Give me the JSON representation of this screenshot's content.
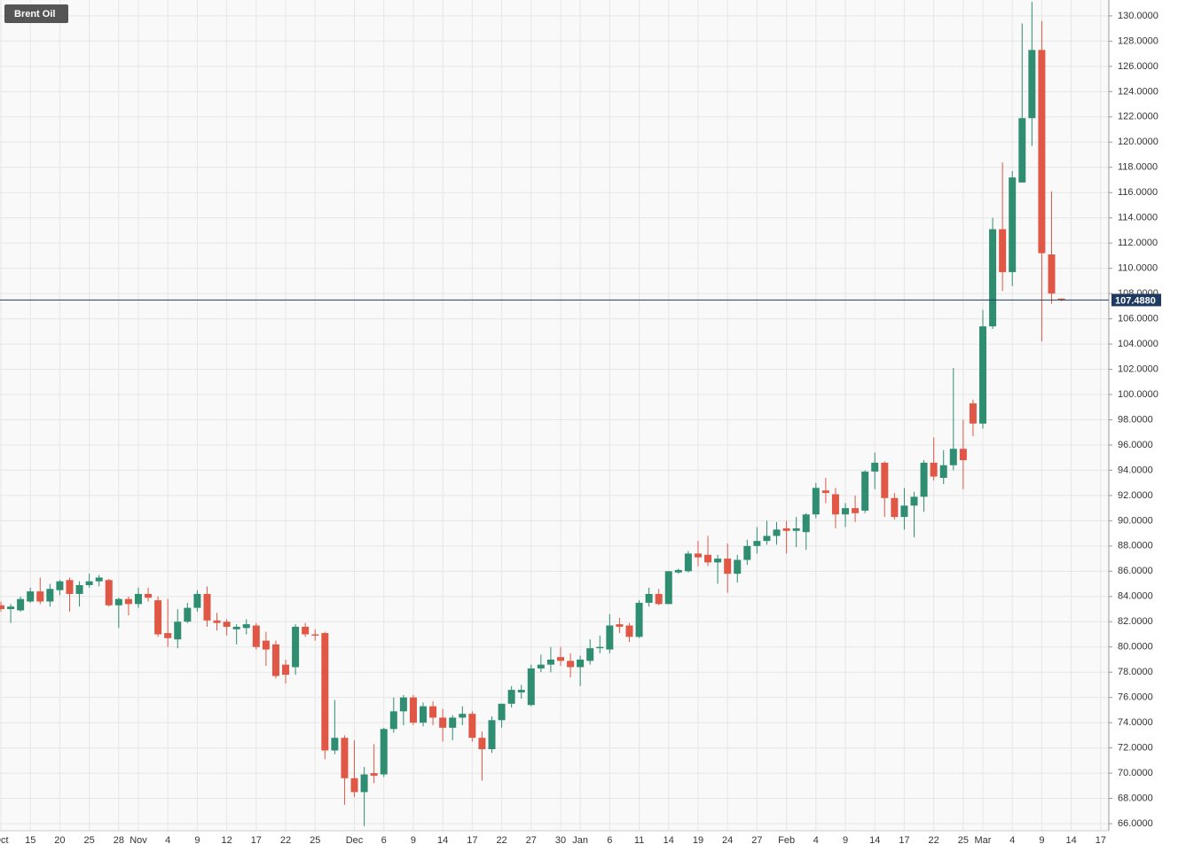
{
  "chart_data": {
    "type": "candlestick",
    "title": "Brent Oil",
    "categories": [
      "Oct",
      null,
      null,
      "15",
      null,
      null,
      "20",
      null,
      null,
      "25",
      null,
      null,
      "28",
      null,
      "Nov",
      null,
      null,
      "4",
      null,
      null,
      "9",
      null,
      null,
      "12",
      null,
      null,
      "17",
      null,
      null,
      "22",
      null,
      null,
      "25",
      null,
      null,
      null,
      "Dec",
      null,
      null,
      "6",
      null,
      null,
      "9",
      null,
      null,
      "14",
      null,
      null,
      "17",
      null,
      null,
      "22",
      null,
      null,
      "27",
      null,
      null,
      "30",
      null,
      "Jan",
      null,
      null,
      "6",
      null,
      null,
      "11",
      null,
      null,
      "14",
      null,
      null,
      "19",
      null,
      null,
      "24",
      null,
      null,
      "27",
      null,
      null,
      "Feb",
      null,
      null,
      "4",
      null,
      null,
      "9",
      null,
      null,
      "14",
      null,
      null,
      "17",
      null,
      null,
      "22",
      null,
      null,
      "25",
      null,
      "Mar",
      null,
      null,
      "4",
      null,
      null,
      "9",
      null,
      null,
      "14",
      null,
      null,
      "17"
    ],
    "open": [
      83.3,
      83.0,
      82.9,
      83.6,
      84.4,
      83.6,
      84.5,
      85.3,
      84.2,
      84.9,
      85.2,
      85.3,
      83.3,
      83.8,
      83.4,
      84.2,
      83.7,
      81.1,
      80.6,
      82.0,
      83.1,
      84.2,
      82.1,
      82.0,
      81.4,
      81.5,
      81.7,
      80.5,
      80.2,
      78.6,
      78.4,
      81.6,
      81.0,
      81.1,
      71.8,
      72.8,
      69.6,
      68.5,
      70.0,
      69.9,
      73.5,
      74.9,
      76.0,
      74.0,
      75.3,
      74.4,
      73.6,
      74.4,
      74.7,
      72.8,
      71.9,
      74.2,
      75.5,
      76.4,
      75.4,
      78.3,
      78.6,
      79.2,
      78.9,
      78.4,
      78.9,
      79.9,
      79.8,
      81.8,
      81.7,
      80.8,
      83.5,
      84.2,
      83.4,
      85.9,
      86.0,
      87.4,
      87.3,
      86.7,
      87.0,
      85.8,
      86.9,
      88.0,
      88.4,
      88.8,
      89.4,
      89.2,
      89.1,
      90.5,
      92.4,
      92.1,
      90.5,
      91.0,
      90.8,
      93.9,
      94.6,
      91.8,
      90.3,
      91.2,
      91.9,
      94.6,
      93.4,
      94.4,
      95.7,
      99.3,
      97.7,
      105.4,
      113.1,
      109.7,
      116.8,
      121.9,
      127.3,
      111.1,
      107.6,
      null,
      null,
      null,
      null
    ],
    "high": [
      83.6,
      83.4,
      84.0,
      84.7,
      85.5,
      85.0,
      85.3,
      85.5,
      85.2,
      85.8,
      85.7,
      85.4,
      83.9,
      84.0,
      84.7,
      84.7,
      84.0,
      83.8,
      83.0,
      83.5,
      84.5,
      84.8,
      82.7,
      82.2,
      81.8,
      82.2,
      81.9,
      81.2,
      80.5,
      79.0,
      81.8,
      81.9,
      81.4,
      81.2,
      75.8,
      73.0,
      72.6,
      70.5,
      72.3,
      73.6,
      76.0,
      76.2,
      76.2,
      75.6,
      75.7,
      75.1,
      74.6,
      75.3,
      74.9,
      73.3,
      74.5,
      75.5,
      76.9,
      77.0,
      78.6,
      79.4,
      80.0,
      80.0,
      79.5,
      79.3,
      80.6,
      80.9,
      82.6,
      82.3,
      81.9,
      83.7,
      84.7,
      84.6,
      86.0,
      86.2,
      87.6,
      88.4,
      88.8,
      87.3,
      88.2,
      87.3,
      88.5,
      89.5,
      90.0,
      89.9,
      90.0,
      90.3,
      90.6,
      93.0,
      93.4,
      92.6,
      91.4,
      92.0,
      94.0,
      95.4,
      94.7,
      92.2,
      92.6,
      92.3,
      94.8,
      96.6,
      95.6,
      102.1,
      98.0,
      99.6,
      106.7,
      114.0,
      118.4,
      117.7,
      129.4,
      131.1,
      129.6,
      116.1,
      107.6,
      null,
      null,
      null,
      null
    ],
    "low": [
      82.8,
      81.9,
      82.8,
      83.5,
      83.4,
      83.2,
      84.1,
      82.8,
      83.2,
      84.7,
      84.8,
      83.2,
      81.5,
      82.5,
      83.1,
      83.6,
      80.8,
      80.0,
      79.9,
      81.9,
      82.8,
      81.6,
      81.3,
      80.9,
      80.2,
      81.0,
      79.8,
      78.5,
      77.5,
      77.1,
      77.8,
      80.8,
      80.5,
      71.1,
      71.5,
      67.5,
      68.1,
      65.8,
      69.2,
      69.7,
      73.2,
      73.8,
      73.8,
      73.7,
      73.8,
      72.5,
      72.6,
      73.8,
      72.5,
      69.4,
      71.6,
      73.6,
      75.2,
      75.9,
      75.3,
      78.0,
      78.0,
      78.5,
      77.6,
      76.9,
      78.6,
      79.5,
      79.5,
      81.1,
      80.4,
      80.7,
      83.2,
      83.3,
      83.4,
      85.8,
      85.9,
      86.4,
      86.4,
      85.0,
      84.3,
      85.1,
      86.5,
      87.4,
      88.1,
      88.1,
      87.4,
      87.9,
      87.7,
      90.2,
      91.4,
      89.4,
      89.5,
      89.9,
      90.6,
      92.5,
      90.3,
      90.1,
      89.3,
      88.7,
      90.7,
      93.2,
      92.9,
      94.0,
      92.5,
      96.7,
      97.3,
      105.2,
      108.2,
      108.6,
      116.8,
      119.7,
      104.2,
      107.2,
      107.4,
      null,
      null,
      null,
      null
    ],
    "close": [
      83.0,
      83.2,
      83.8,
      84.4,
      83.6,
      84.6,
      85.2,
      84.2,
      84.9,
      85.2,
      85.5,
      83.3,
      83.8,
      83.4,
      84.2,
      83.9,
      81.0,
      80.7,
      82.0,
      83.1,
      84.2,
      82.1,
      81.9,
      81.6,
      81.6,
      81.8,
      80.0,
      79.8,
      77.7,
      77.8,
      81.6,
      81.0,
      80.9,
      71.8,
      72.8,
      69.6,
      68.5,
      69.9,
      69.8,
      73.5,
      74.9,
      76.0,
      74.0,
      75.3,
      74.4,
      73.6,
      74.4,
      74.7,
      72.8,
      71.9,
      74.2,
      75.5,
      76.6,
      76.6,
      78.3,
      78.6,
      79.0,
      78.9,
      78.4,
      79.0,
      79.9,
      80.0,
      81.7,
      81.6,
      80.8,
      83.5,
      84.2,
      83.4,
      86.0,
      86.1,
      87.4,
      87.1,
      86.7,
      87.0,
      85.8,
      86.9,
      88.0,
      88.4,
      88.8,
      89.3,
      89.2,
      89.4,
      90.5,
      92.6,
      92.2,
      90.5,
      91.0,
      90.6,
      93.9,
      94.6,
      91.8,
      90.3,
      91.2,
      91.9,
      94.6,
      93.5,
      94.4,
      95.7,
      94.8,
      97.7,
      105.4,
      113.1,
      109.7,
      117.2,
      121.9,
      127.3,
      111.2,
      108.0,
      107.49,
      null,
      null,
      null,
      null
    ],
    "up_color": "#2f8d72",
    "down_color": "#e05745",
    "last_price": {
      "value": 107.488,
      "label": "107.4880"
    },
    "last_price_color": "#1f3a60",
    "ylim": [
      65.44,
      131.26
    ],
    "yticks": [
      {
        "value": 66,
        "label": "66.0000"
      },
      {
        "value": 68,
        "label": "68.0000"
      },
      {
        "value": 70,
        "label": "70.0000"
      },
      {
        "value": 72,
        "label": "72.0000"
      },
      {
        "value": 74,
        "label": "74.0000"
      },
      {
        "value": 76,
        "label": "76.0000"
      },
      {
        "value": 78,
        "label": "78.0000"
      },
      {
        "value": 80,
        "label": "80.0000"
      },
      {
        "value": 82,
        "label": "82.0000"
      },
      {
        "value": 84,
        "label": "84.0000"
      },
      {
        "value": 86,
        "label": "86.0000"
      },
      {
        "value": 88,
        "label": "88.0000"
      },
      {
        "value": 90,
        "label": "90.0000"
      },
      {
        "value": 92,
        "label": "92.0000"
      },
      {
        "value": 94,
        "label": "94.0000"
      },
      {
        "value": 96,
        "label": "96.0000"
      },
      {
        "value": 98,
        "label": "98.0000"
      },
      {
        "value": 100,
        "label": "100.0000"
      },
      {
        "value": 102,
        "label": "102.0000"
      },
      {
        "value": 104,
        "label": "104.0000"
      },
      {
        "value": 106,
        "label": "106.0000"
      },
      {
        "value": 108,
        "label": "108.0000"
      },
      {
        "value": 110,
        "label": "110.0000"
      },
      {
        "value": 112,
        "label": "112.0000"
      },
      {
        "value": 114,
        "label": "114.0000"
      },
      {
        "value": 116,
        "label": "116.0000"
      },
      {
        "value": 118,
        "label": "118.0000"
      },
      {
        "value": 120,
        "label": "120.0000"
      },
      {
        "value": 122,
        "label": "122.0000"
      },
      {
        "value": 124,
        "label": "124.0000"
      },
      {
        "value": 126,
        "label": "126.0000"
      },
      {
        "value": 128,
        "label": "128.0000"
      },
      {
        "value": 130,
        "label": "130.0000"
      }
    ],
    "grid": true
  }
}
